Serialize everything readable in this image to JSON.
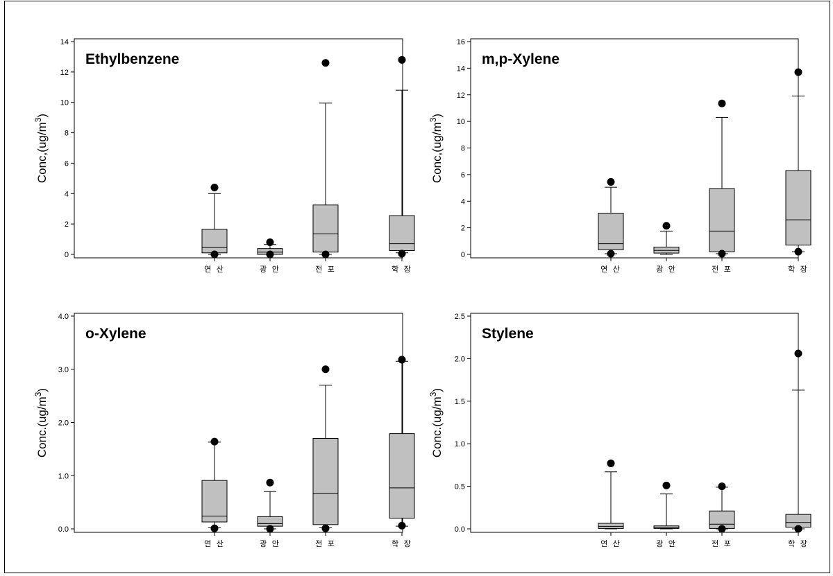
{
  "chart_data": [
    {
      "type": "box",
      "title": "Ethylbenzene",
      "ylabel": "Conc,(ug/m",
      "ylabel_sup": "3",
      "ylabel_close": ")",
      "ylim": [
        0,
        14
      ],
      "yticks": [
        "0",
        "2",
        "4",
        "6",
        "8",
        "10",
        "12",
        "14"
      ],
      "categories": [
        "연 산",
        "광 안",
        "전 포",
        "학 장"
      ],
      "boxes": [
        {
          "q1": 0.1,
          "median": 0.45,
          "q3": 1.65,
          "whisker_low": 0.0,
          "whisker_high": 4.0,
          "outliers": [
            4.4,
            0.0
          ]
        },
        {
          "q1": 0.0,
          "median": 0.15,
          "q3": 0.38,
          "whisker_low": 0.0,
          "whisker_high": 0.65,
          "outliers": [
            0.8,
            0.0
          ]
        },
        {
          "q1": 0.15,
          "median": 1.35,
          "q3": 3.25,
          "whisker_low": 0.0,
          "whisker_high": 9.95,
          "outliers": [
            12.6,
            0.0
          ]
        },
        {
          "q1": 0.25,
          "median": 0.7,
          "q3": 2.55,
          "whisker_low": 0.1,
          "whisker_high": 10.8,
          "outliers": [
            12.8,
            0.05
          ]
        }
      ]
    },
    {
      "type": "box",
      "title": "m,p-Xylene",
      "ylabel": "Conc,(ug/m",
      "ylabel_sup": "3",
      "ylabel_close": ")",
      "ylim": [
        0,
        16
      ],
      "yticks": [
        "0",
        "2",
        "4",
        "6",
        "8",
        "10",
        "12",
        "14",
        "16"
      ],
      "categories": [
        "연 산",
        "광 안",
        "전 포",
        "학 장"
      ],
      "boxes": [
        {
          "q1": 0.35,
          "median": 0.8,
          "q3": 3.1,
          "whisker_low": 0.05,
          "whisker_high": 5.05,
          "outliers": [
            5.45,
            0.05
          ]
        },
        {
          "q1": 0.1,
          "median": 0.3,
          "q3": 0.55,
          "whisker_low": 0.0,
          "whisker_high": 1.75,
          "outliers": [
            2.15
          ]
        },
        {
          "q1": 0.2,
          "median": 1.75,
          "q3": 4.95,
          "whisker_low": 0.05,
          "whisker_high": 10.3,
          "outliers": [
            11.35,
            0.05
          ]
        },
        {
          "q1": 0.7,
          "median": 2.6,
          "q3": 6.3,
          "whisker_low": 0.2,
          "whisker_high": 11.9,
          "outliers": [
            13.7,
            0.2
          ]
        }
      ]
    },
    {
      "type": "box",
      "title": "o-Xylene",
      "ylabel": "Conc.(ug/m",
      "ylabel_sup": "3",
      "ylabel_close": ")",
      "ylim": [
        0,
        4.0
      ],
      "yticks": [
        "0.0",
        "1.0",
        "2.0",
        "3.0",
        "4.0"
      ],
      "categories": [
        "연 산",
        "광 안",
        "전 포",
        "학 장"
      ],
      "boxes": [
        {
          "q1": 0.13,
          "median": 0.24,
          "q3": 0.91,
          "whisker_low": 0.02,
          "whisker_high": 1.63,
          "outliers": [
            1.64,
            0.01
          ]
        },
        {
          "q1": 0.05,
          "median": 0.1,
          "q3": 0.23,
          "whisker_low": 0.0,
          "whisker_high": 0.7,
          "outliers": [
            0.87,
            0.0
          ]
        },
        {
          "q1": 0.08,
          "median": 0.67,
          "q3": 1.7,
          "whisker_low": 0.02,
          "whisker_high": 2.7,
          "outliers": [
            3.0,
            0.01
          ]
        },
        {
          "q1": 0.2,
          "median": 0.77,
          "q3": 1.79,
          "whisker_low": 0.05,
          "whisker_high": 3.15,
          "outliers": [
            3.18,
            0.06
          ]
        }
      ]
    },
    {
      "type": "box",
      "title": "Stylene",
      "ylabel": "Conc.(ug/m",
      "ylabel_sup": "3",
      "ylabel_close": ")",
      "ylim": [
        0,
        2.5
      ],
      "yticks": [
        "0.0",
        "0.5",
        "1.0",
        "1.5",
        "2.0",
        "2.5"
      ],
      "categories": [
        "연 산",
        "광 안",
        "전 포",
        "학 장"
      ],
      "boxes": [
        {
          "q1": 0.005,
          "median": 0.03,
          "q3": 0.065,
          "whisker_low": 0.0,
          "whisker_high": 0.67,
          "outliers": [
            0.77
          ]
        },
        {
          "q1": 0.005,
          "median": 0.015,
          "q3": 0.035,
          "whisker_low": 0.0,
          "whisker_high": 0.41,
          "outliers": [
            0.51
          ]
        },
        {
          "q1": 0.005,
          "median": 0.055,
          "q3": 0.21,
          "whisker_low": 0.0,
          "whisker_high": 0.49,
          "outliers": [
            0.5,
            0.0
          ]
        },
        {
          "q1": 0.02,
          "median": 0.075,
          "q3": 0.17,
          "whisker_low": 0.0,
          "whisker_high": 1.63,
          "outliers": [
            2.06,
            0.0
          ]
        }
      ]
    }
  ]
}
